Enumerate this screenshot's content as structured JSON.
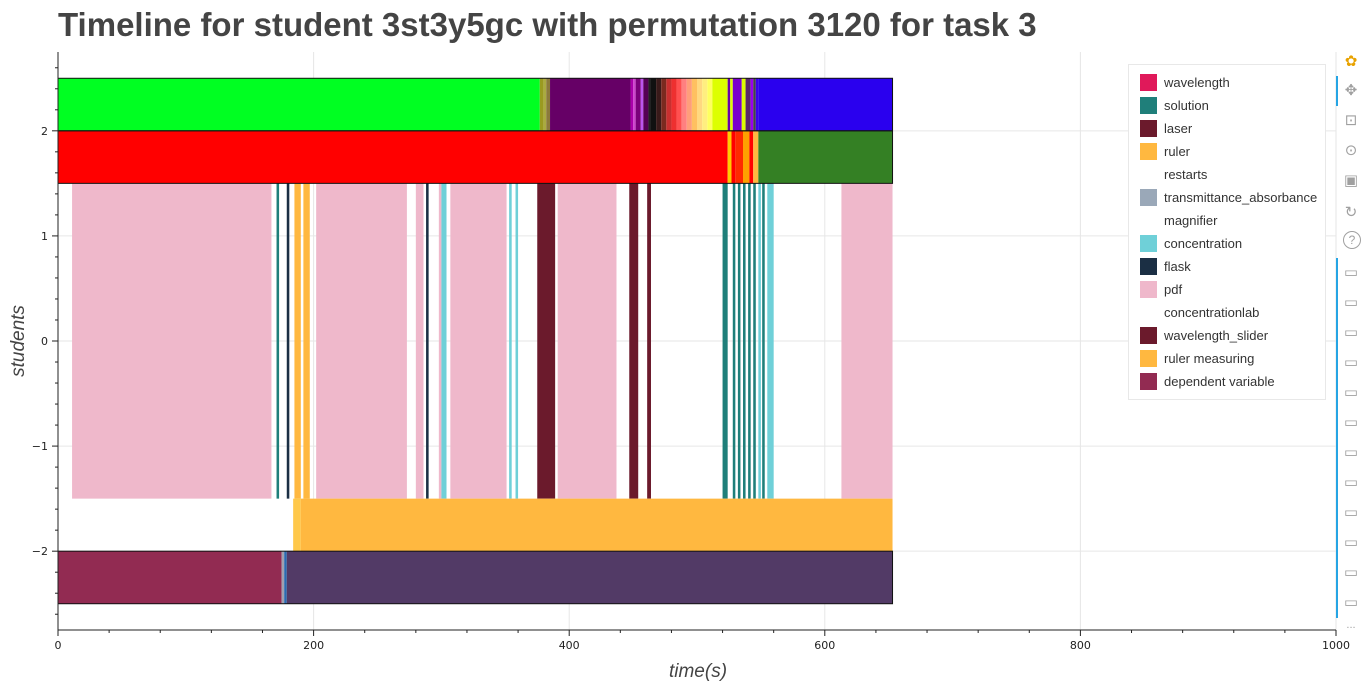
{
  "title": "Timeline for student 3st3y5gc with permutation 3120 for task 3",
  "toolbar": {
    "tools": [
      "bokeh-logo-icon",
      "pan-icon",
      "box-zoom-icon",
      "wheel-zoom-icon",
      "save-icon",
      "reset-icon",
      "help-icon",
      "hover-icon",
      "hover-icon",
      "hover-icon",
      "hover-icon",
      "hover-icon",
      "hover-icon",
      "hover-icon",
      "hover-icon",
      "hover-icon",
      "hover-icon",
      "hover-icon",
      "hover-icon"
    ],
    "more": "..."
  },
  "chart_data": {
    "type": "timeline",
    "xlabel": "time(s)",
    "ylabel": "students",
    "xlim": [
      0,
      1000
    ],
    "ylim": [
      -2.75,
      2.75
    ],
    "x_ticks": [
      0,
      200,
      400,
      600,
      800,
      1000
    ],
    "y_ticks": [
      {
        "value": 2,
        "label": "2"
      },
      {
        "value": 1,
        "label": "1"
      },
      {
        "value": 0,
        "label": "0"
      },
      {
        "value": -1,
        "label": "−1"
      },
      {
        "value": -2,
        "label": "−2"
      }
    ],
    "grid": true,
    "legend_position": "top-right",
    "legend": [
      {
        "label": "wavelength",
        "color": "#e0195a"
      },
      {
        "label": "solution",
        "color": "#1f7f7a"
      },
      {
        "label": "laser",
        "color": "#6b1a2c"
      },
      {
        "label": "ruler",
        "color": "#ffb840"
      },
      {
        "label": "restarts",
        "color": "#ffffff"
      },
      {
        "label": "transmittance_absorbance",
        "color": "#9aa8b8"
      },
      {
        "label": "magnifier",
        "color": "#ffffff"
      },
      {
        "label": "concentration",
        "color": "#6fd0d8"
      },
      {
        "label": "flask",
        "color": "#1b2f44"
      },
      {
        "label": "pdf",
        "color": "#efb8cb"
      },
      {
        "label": "concentrationlab",
        "color": "#ffffff"
      },
      {
        "label": "wavelength_slider",
        "color": "#6b1a2c"
      },
      {
        "label": "ruler measuring",
        "color": "#ffb840"
      },
      {
        "label": "dependent variable",
        "color": "#922b52"
      }
    ],
    "rows": [
      {
        "y0": 2,
        "y1": 2.5,
        "segments": [
          [
            0,
            377,
            "#00ff22"
          ],
          [
            377,
            380,
            "#9a9a20"
          ],
          [
            380,
            382,
            "#aaaa40"
          ],
          [
            382,
            385,
            "#8b7a3a"
          ],
          [
            385,
            448,
            "#660066"
          ],
          [
            448,
            450,
            "#aa00aa"
          ],
          [
            450,
            452,
            "#cc44cc"
          ],
          [
            452,
            456,
            "#7a007a"
          ],
          [
            456,
            458,
            "#bb55ee"
          ],
          [
            458,
            462,
            "#550055"
          ],
          [
            462,
            464,
            "#222222"
          ],
          [
            464,
            468,
            "#111111"
          ],
          [
            468,
            472,
            "#3a1a1a"
          ],
          [
            472,
            476,
            "#7a2a20"
          ],
          [
            476,
            480,
            "#c83030"
          ],
          [
            480,
            484,
            "#ee3030"
          ],
          [
            484,
            488,
            "#ff5050"
          ],
          [
            488,
            492,
            "#ff8080"
          ],
          [
            492,
            496,
            "#ff9e7a"
          ],
          [
            496,
            500,
            "#ffc060"
          ],
          [
            500,
            504,
            "#ffd880"
          ],
          [
            504,
            508,
            "#ffee80"
          ],
          [
            508,
            512,
            "#ffff60"
          ],
          [
            512,
            524,
            "#ddff00"
          ],
          [
            524,
            526,
            "#6a00aa"
          ],
          [
            526,
            528,
            "#ddff00"
          ],
          [
            528,
            535,
            "#7a00cc"
          ],
          [
            535,
            538,
            "#ddff00"
          ],
          [
            538,
            542,
            "#5a2a6a"
          ],
          [
            542,
            544,
            "#9a00ee"
          ],
          [
            544,
            546,
            "#444444"
          ],
          [
            546,
            548,
            "#3a00ee"
          ],
          [
            548,
            653,
            "#2a00ee"
          ]
        ]
      },
      {
        "y0": 1.5,
        "y1": 2,
        "segments": [
          [
            0,
            524,
            "#ff0000"
          ],
          [
            524,
            527,
            "#ffcc00"
          ],
          [
            527,
            530,
            "#ff0000"
          ],
          [
            530,
            536,
            "#ff2a00"
          ],
          [
            536,
            541,
            "#ffa000"
          ],
          [
            541,
            544,
            "#ff0000"
          ],
          [
            544,
            548,
            "#ffb840"
          ],
          [
            548,
            653,
            "#348024"
          ]
        ]
      },
      {
        "y0": -1.5,
        "y1": 1.5,
        "segments": [
          [
            11,
            167,
            "#efb8cb"
          ],
          [
            171,
            173,
            "#1f7f7a"
          ],
          [
            179,
            181,
            "#1b2f44"
          ],
          [
            185,
            190,
            "#ffb840"
          ],
          [
            192,
            197,
            "#ffb840"
          ],
          [
            202,
            273,
            "#efb8cb"
          ],
          [
            280,
            286,
            "#efb8cb"
          ],
          [
            288,
            290,
            "#1b2f44"
          ],
          [
            298,
            300,
            "#efb8cb"
          ],
          [
            300,
            304,
            "#6fd0d8"
          ],
          [
            307,
            351,
            "#efb8cb"
          ],
          [
            353,
            355,
            "#6fd0d8"
          ],
          [
            358,
            360,
            "#6fd0d8"
          ],
          [
            375,
            389,
            "#6b1a2c"
          ],
          [
            391,
            437,
            "#efb8cb"
          ],
          [
            447,
            454,
            "#6b1a2c"
          ],
          [
            461,
            464,
            "#6b1a2c"
          ],
          [
            520,
            524,
            "#1f7f7a"
          ],
          [
            528,
            530,
            "#1f7f7a"
          ],
          [
            532,
            534,
            "#1f7f7a"
          ],
          [
            536,
            538,
            "#1f7f7a"
          ],
          [
            540,
            542,
            "#1f7f7a"
          ],
          [
            544,
            546,
            "#1f7f7a"
          ],
          [
            548,
            550,
            "#6fd0d8"
          ],
          [
            551,
            553,
            "#1f7f7a"
          ],
          [
            555,
            560,
            "#6fd0d8"
          ],
          [
            613,
            653,
            "#efb8cb"
          ]
        ]
      },
      {
        "y0": -2,
        "y1": -1.5,
        "segments": [
          [
            184,
            190,
            "#ffc84a"
          ],
          [
            190,
            653,
            "#ffb840"
          ]
        ]
      },
      {
        "y0": -2.5,
        "y1": -2,
        "segments": [
          [
            0,
            175,
            "#922b52"
          ],
          [
            175,
            177,
            "#a0a0b0"
          ],
          [
            177,
            179,
            "#2a6ab0"
          ],
          [
            179,
            653,
            "#523a66"
          ]
        ]
      }
    ]
  }
}
